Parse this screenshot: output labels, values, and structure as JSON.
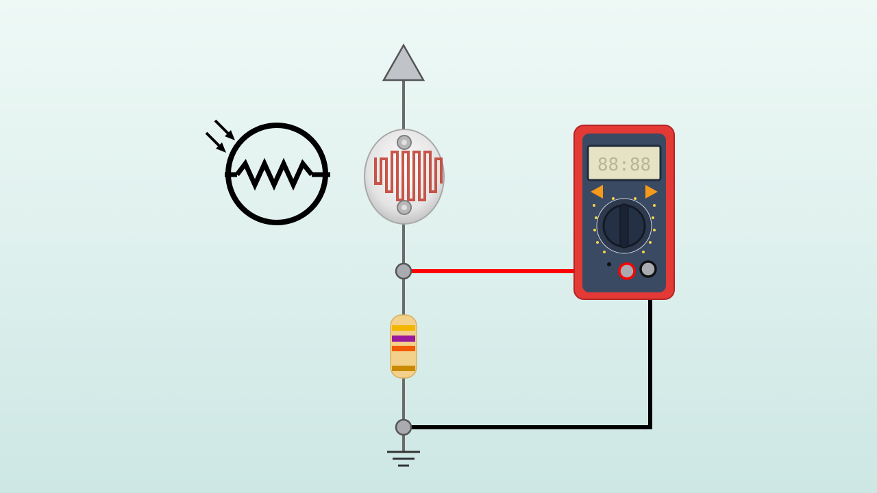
{
  "colors": {
    "background_top": "#eef9f6",
    "background_bottom": "#cde7e4",
    "rail_wire": "#6b6b6b",
    "probe_red_wire": "#ff0000",
    "probe_black_wire": "#000000",
    "node_fill": "#a9abb0",
    "supply_arrow_fill": "#c0c3c8",
    "multimeter_body": "#e33a36",
    "multimeter_face": "#3b4a63",
    "multimeter_lcd": "#e6e3c4",
    "multimeter_buttons": "#f59a1a",
    "ldr_track": "#c0392b"
  },
  "components": {
    "supply": {
      "icon": "vcc-arrow-icon"
    },
    "ldr_symbol": {
      "icon": "photoresistor-symbol-icon"
    },
    "ldr_photo": {
      "icon": "photoresistor-icon"
    },
    "resistor": {
      "icon": "resistor-icon",
      "bands": [
        "#f2b600",
        "#9b1a9b",
        "#f25a00",
        "#c98a00"
      ]
    },
    "multimeter": {
      "icon": "multimeter-icon",
      "display": "88:88"
    },
    "ground": {
      "icon": "ground-icon"
    }
  },
  "connections": [
    {
      "from": "voltage-divider-midpoint",
      "to": "multimeter-red-probe",
      "color": "red"
    },
    {
      "from": "ground-node",
      "to": "multimeter-black-probe",
      "color": "black"
    }
  ]
}
